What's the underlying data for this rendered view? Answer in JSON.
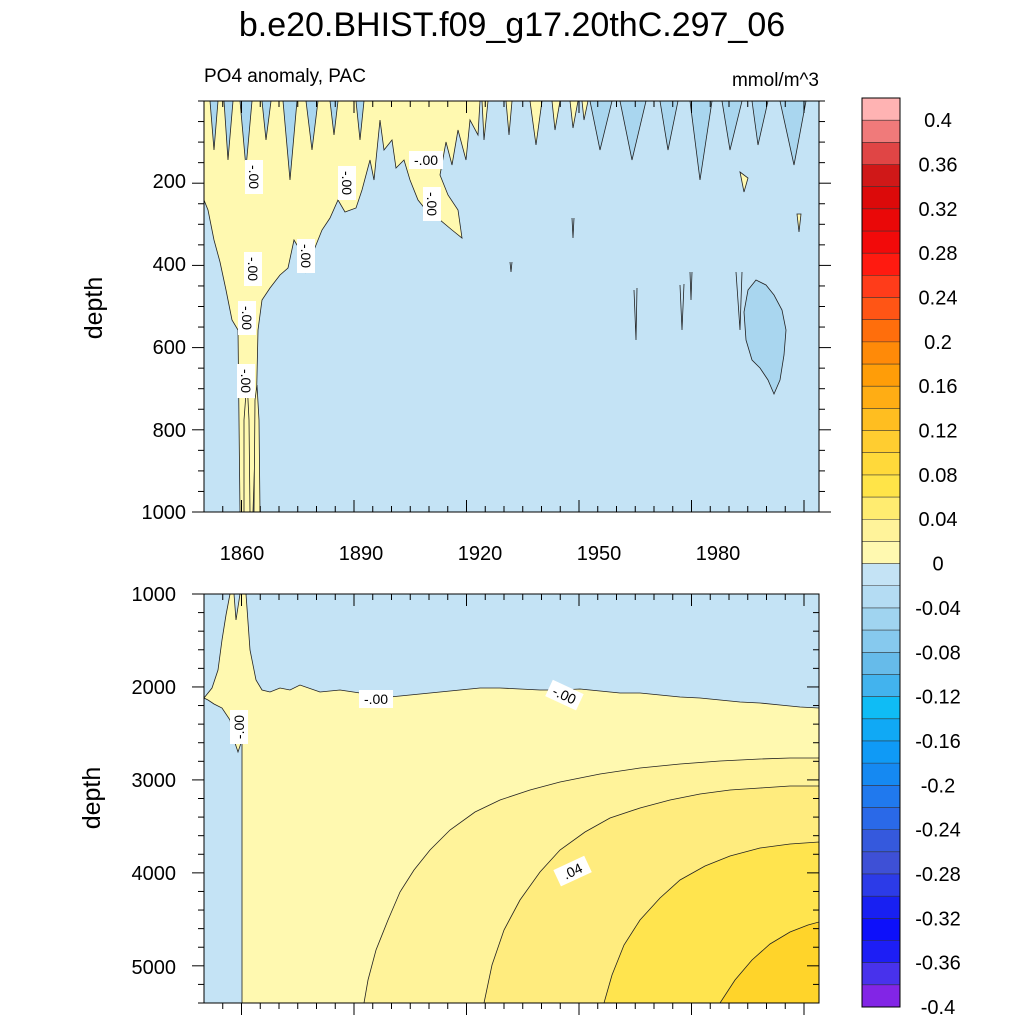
{
  "title": "b.e20.BHIST.f09_g17.20thC.297_06",
  "subtitle_left": "PO4 anomaly, PAC",
  "subtitle_right": "mmol/m^3",
  "colors": {
    "negative_shallow": "#c4e3f5",
    "negative_mid": "#a9d6ef",
    "positive_l1": "#fff9b0",
    "positive_l2": "#fff39a",
    "positive_l3": "#ffec7e",
    "positive_l4": "#ffe44e",
    "positive_l5": "#ffd42a"
  },
  "chart_data": [
    {
      "type": "heatmap",
      "panel": "upper",
      "ylabel": "depth",
      "xlim": [
        1850,
        2014
      ],
      "ylim": [
        1000,
        0
      ],
      "x_ticks": [
        "1860",
        "1890",
        "1920",
        "1950",
        "1980"
      ],
      "y_ticks": [
        "200",
        "400",
        "600",
        "800",
        "1000"
      ],
      "contour_labels": [
        "-.00",
        "-.00",
        "-.00",
        "-.00",
        "-.00",
        "-.00",
        "-.00",
        "-.00"
      ]
    },
    {
      "type": "heatmap",
      "panel": "lower",
      "ylabel": "depth",
      "xlim": [
        1850,
        2014
      ],
      "ylim": [
        5400,
        1000
      ],
      "y_ticks": [
        "1000",
        "2000",
        "3000",
        "4000",
        "5000"
      ],
      "contour_labels": [
        "-.00",
        "-.00",
        "-.00",
        ".04"
      ]
    }
  ],
  "colorbar": {
    "levels": [
      "0.4",
      "0.36",
      "0.32",
      "0.28",
      "0.24",
      "0.2",
      "0.16",
      "0.12",
      "0.08",
      "0.04",
      "0",
      "-0.04",
      "-0.08",
      "-0.12",
      "-0.16",
      "-0.2",
      "-0.24",
      "-0.28",
      "-0.32",
      "-0.36",
      "-0.4"
    ],
    "colors": [
      "#ffb3b3",
      "#f07a7a",
      "#e04545",
      "#d01818",
      "#dc0a0a",
      "#ea0808",
      "#f20a0a",
      "#ff1a10",
      "#ff3c1a",
      "#ff5515",
      "#ff6e0c",
      "#ff8a08",
      "#ff9d08",
      "#ffad14",
      "#ffbe20",
      "#ffcd30",
      "#ffd93a",
      "#ffe448",
      "#ffec70",
      "#fff39a",
      "#fff9b0",
      "#c4e3f5",
      "#b4dcf3",
      "#a0d4f0",
      "#86c9ee",
      "#66bbea",
      "#42b3ee",
      "#0fbcf5",
      "#10a9f5",
      "#0f9af6",
      "#1589f2",
      "#2079ee",
      "#2a69e8",
      "#3559dd",
      "#3e50d6",
      "#2c3be8",
      "#1820f2",
      "#0d10fa",
      "#1d1ef5",
      "#4832ec",
      "#8225e6"
    ]
  }
}
